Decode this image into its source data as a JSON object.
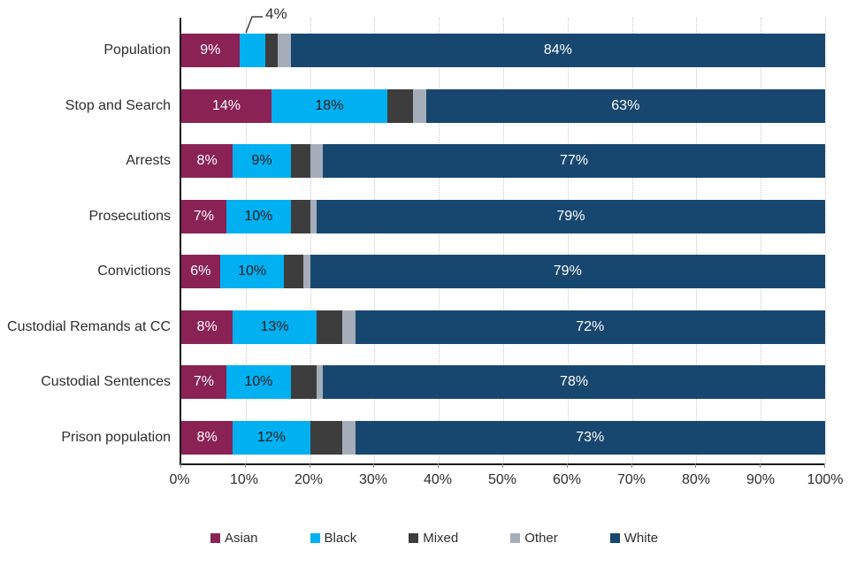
{
  "chart_data": {
    "type": "bar",
    "variant": "horizontal-stacked-100",
    "title": "",
    "xlabel": "",
    "ylabel": "",
    "xlim": [
      0,
      100
    ],
    "grid": "vertical-dotted",
    "legend_position": "bottom",
    "categories": [
      "Population",
      "Stop and Search",
      "Arrests",
      "Prosecutions",
      "Convictions",
      "Custodial Remands at CC",
      "Custodial Sentences",
      "Prison population"
    ],
    "series": [
      {
        "name": "Asian",
        "color": "#8b2256",
        "label_text_color": "#ffffff",
        "values": [
          9,
          14,
          8,
          7,
          6,
          8,
          7,
          8
        ]
      },
      {
        "name": "Black",
        "color": "#00b0f0",
        "label_text_color": "#1a1a1a",
        "values": [
          4,
          18,
          9,
          10,
          10,
          13,
          10,
          12
        ]
      },
      {
        "name": "Mixed",
        "color": "#3d3d3d",
        "label_text_color": "#ffffff",
        "values": [
          2,
          4,
          3,
          3,
          3,
          4,
          4,
          5
        ]
      },
      {
        "name": "Other",
        "color": "#a6adba",
        "label_text_color": "#1a1a1a",
        "values": [
          2,
          2,
          2,
          1,
          1,
          2,
          1,
          2
        ]
      },
      {
        "name": "White",
        "color": "#17476f",
        "label_text_color": "#ffffff",
        "values": [
          84,
          63,
          77,
          79,
          79,
          72,
          78,
          73
        ]
      }
    ],
    "segment_labels": {
      "shown_for_series": [
        "Asian",
        "Black",
        "White"
      ],
      "min_value_to_show": 6,
      "format": "{value}%"
    },
    "x_ticks": [
      "0%",
      "10%",
      "20%",
      "30%",
      "40%",
      "50%",
      "60%",
      "70%",
      "80%",
      "90%",
      "100%"
    ],
    "callout": {
      "text": "4%",
      "series": "Black",
      "category": "Population",
      "value": 4
    }
  },
  "legend": {
    "items": [
      {
        "label": "Asian",
        "color": "#8b2256"
      },
      {
        "label": "Black",
        "color": "#00b0f0"
      },
      {
        "label": "Mixed",
        "color": "#3d3d3d"
      },
      {
        "label": "Other",
        "color": "#a6adba"
      },
      {
        "label": "White",
        "color": "#17476f"
      }
    ]
  }
}
